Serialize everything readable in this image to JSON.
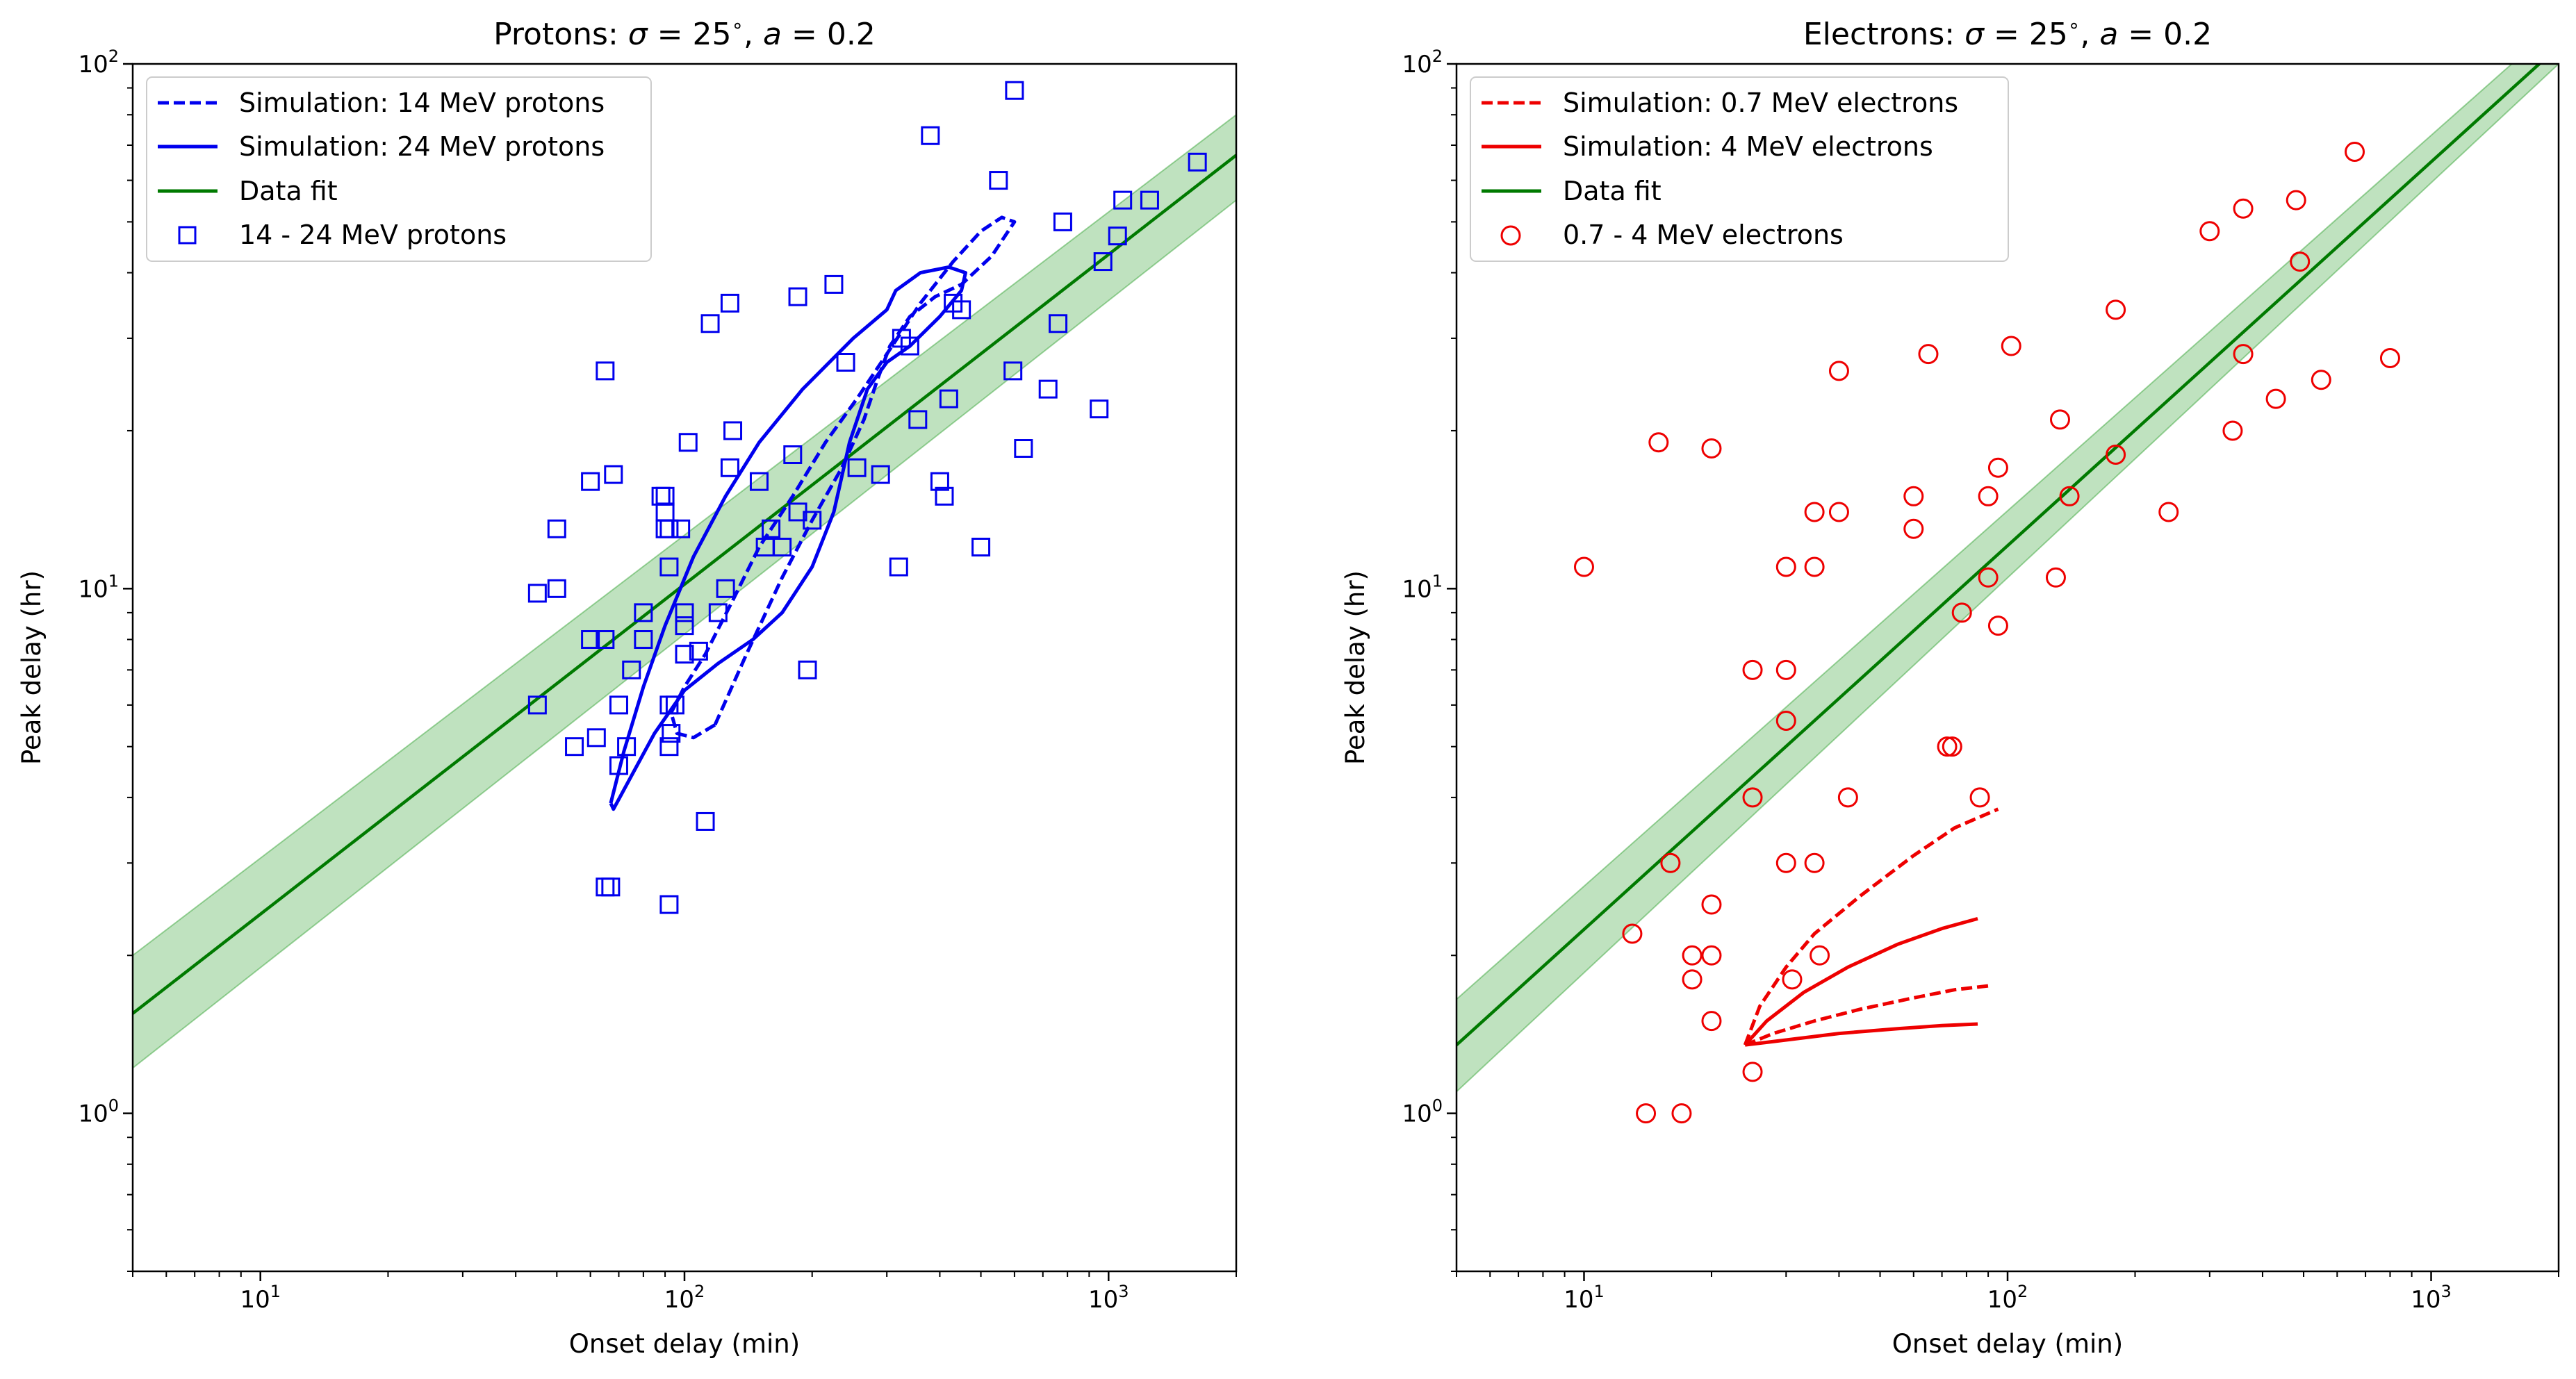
{
  "chart_data": [
    {
      "type": "scatter",
      "title": "Protons: σ = 25°, a = 0.2",
      "title_parts": {
        "prefix": "Protons: ",
        "sigma": "σ",
        "eq1": " = 25",
        "deg": "∘",
        "comma": ", ",
        "a": "a",
        "eq2": " = 0.2"
      },
      "xlabel": "Onset delay (min)",
      "ylabel": "Peak delay (hr)",
      "xscale": "log",
      "yscale": "log",
      "xlim": [
        5,
        2000
      ],
      "ylim": [
        0.5,
        100
      ],
      "xticks": [
        {
          "v": 10,
          "base": "10",
          "exp": "1"
        },
        {
          "v": 100,
          "base": "10",
          "exp": "2"
        },
        {
          "v": 1000,
          "base": "10",
          "exp": "3"
        }
      ],
      "yticks": [
        {
          "v": 1,
          "base": "10",
          "exp": "0"
        },
        {
          "v": 10,
          "base": "10",
          "exp": "1"
        },
        {
          "v": 100,
          "base": "10",
          "exp": "2"
        }
      ],
      "legend_position": "top-left",
      "legend": [
        "Simulation: 14 MeV protons",
        "Simulation: 24 MeV protons",
        "Data fit",
        "14 - 24 MeV protons"
      ],
      "marker": "square",
      "color": "#0000ee",
      "fit": {
        "x": [
          5,
          2000
        ],
        "y": [
          1.55,
          67
        ],
        "band_low": [
          1.22,
          55
        ],
        "band_high": [
          2.0,
          80
        ],
        "color": "#007a00",
        "band_color": "#2ca02c"
      },
      "sim_14": [
        [
          118,
          5.5
        ],
        [
          140,
          7.5
        ],
        [
          170,
          10.5
        ],
        [
          200,
          13.5
        ],
        [
          235,
          17
        ],
        [
          265,
          21
        ],
        [
          285,
          25
        ],
        [
          305,
          29
        ],
        [
          340,
          33
        ],
        [
          390,
          36
        ],
        [
          450,
          38
        ],
        [
          530,
          43
        ],
        [
          580,
          48
        ],
        [
          600,
          50
        ],
        [
          560,
          51
        ],
        [
          500,
          48
        ],
        [
          430,
          42
        ],
        [
          360,
          35
        ],
        [
          300,
          28
        ],
        [
          255,
          23
        ],
        [
          215,
          19
        ],
        [
          180,
          15
        ],
        [
          150,
          12
        ],
        [
          130,
          9.5
        ],
        [
          112,
          7.5
        ],
        [
          100,
          6.5
        ],
        [
          93,
          5.8
        ],
        [
          96,
          5.3
        ],
        [
          105,
          5.2
        ],
        [
          118,
          5.5
        ]
      ],
      "sim_24": [
        [
          67,
          3.9
        ],
        [
          72,
          4.9
        ],
        [
          80,
          6.5
        ],
        [
          90,
          8.5
        ],
        [
          105,
          11.5
        ],
        [
          125,
          15
        ],
        [
          150,
          19
        ],
        [
          190,
          24
        ],
        [
          250,
          30
        ],
        [
          300,
          34
        ],
        [
          315,
          37
        ],
        [
          360,
          40
        ],
        [
          420,
          41
        ],
        [
          460,
          40
        ],
        [
          450,
          37
        ],
        [
          400,
          33
        ],
        [
          340,
          29
        ],
        [
          300,
          27
        ],
        [
          270,
          24
        ],
        [
          245,
          19
        ],
        [
          225,
          14
        ],
        [
          200,
          11
        ],
        [
          170,
          9
        ],
        [
          145,
          8
        ],
        [
          120,
          7.2
        ],
        [
          100,
          6.4
        ],
        [
          85,
          5.3
        ],
        [
          75,
          4.4
        ],
        [
          68,
          3.8
        ],
        [
          67,
          3.9
        ]
      ],
      "points": [
        [
          45,
          6
        ],
        [
          45,
          9.8
        ],
        [
          50,
          13
        ],
        [
          50,
          10
        ],
        [
          55,
          5
        ],
        [
          60,
          16
        ],
        [
          60,
          8
        ],
        [
          62,
          5.2
        ],
        [
          65,
          2.7
        ],
        [
          65,
          26
        ],
        [
          65,
          8
        ],
        [
          68,
          16.5
        ],
        [
          70,
          6
        ],
        [
          70,
          4.6
        ],
        [
          73,
          5
        ],
        [
          75,
          7
        ],
        [
          80,
          9
        ],
        [
          80,
          8
        ],
        [
          88,
          15
        ],
        [
          90,
          15
        ],
        [
          90,
          14
        ],
        [
          90,
          13
        ],
        [
          92,
          11
        ],
        [
          92,
          13
        ],
        [
          92,
          5
        ],
        [
          92,
          6
        ],
        [
          93,
          5.3
        ],
        [
          95,
          6
        ],
        [
          98,
          13
        ],
        [
          100,
          9
        ],
        [
          100,
          7.5
        ],
        [
          100,
          8.5
        ],
        [
          102,
          19
        ],
        [
          108,
          7.6
        ],
        [
          112,
          3.6
        ],
        [
          115,
          32
        ],
        [
          120,
          9
        ],
        [
          125,
          10
        ],
        [
          128,
          17
        ],
        [
          128,
          35
        ],
        [
          130,
          20
        ],
        [
          150,
          16
        ],
        [
          155,
          12
        ],
        [
          160,
          13
        ],
        [
          170,
          12
        ],
        [
          180,
          18
        ],
        [
          185,
          36
        ],
        [
          185,
          14
        ],
        [
          195,
          7
        ],
        [
          200,
          13.5
        ],
        [
          225,
          38
        ],
        [
          240,
          27
        ],
        [
          255,
          17
        ],
        [
          290,
          16.5
        ],
        [
          320,
          11
        ],
        [
          325,
          30
        ],
        [
          340,
          29
        ],
        [
          355,
          21
        ],
        [
          380,
          73
        ],
        [
          400,
          16
        ],
        [
          410,
          15
        ],
        [
          420,
          23
        ],
        [
          430,
          35
        ],
        [
          450,
          34
        ],
        [
          500,
          12
        ],
        [
          550,
          60
        ],
        [
          595,
          26
        ],
        [
          600,
          89
        ],
        [
          630,
          18.5
        ],
        [
          720,
          24
        ],
        [
          760,
          32
        ],
        [
          780,
          50
        ],
        [
          950,
          22
        ],
        [
          970,
          42
        ],
        [
          1050,
          47
        ],
        [
          1080,
          55
        ],
        [
          1250,
          55
        ],
        [
          1620,
          65
        ],
        [
          92,
          2.5
        ],
        [
          67,
          2.7
        ]
      ]
    },
    {
      "type": "scatter",
      "title": "Electrons: σ = 25°, a = 0.2",
      "title_parts": {
        "prefix": "Electrons: ",
        "sigma": "σ",
        "eq1": " = 25",
        "deg": "∘",
        "comma": ", ",
        "a": "a",
        "eq2": " = 0.2"
      },
      "xlabel": "Onset delay (min)",
      "ylabel": "Peak delay (hr)",
      "xscale": "log",
      "yscale": "log",
      "xlim": [
        5,
        2000
      ],
      "ylim": [
        0.5,
        100
      ],
      "xticks": [
        {
          "v": 10,
          "base": "10",
          "exp": "1"
        },
        {
          "v": 100,
          "base": "10",
          "exp": "2"
        },
        {
          "v": 1000,
          "base": "10",
          "exp": "3"
        }
      ],
      "yticks": [
        {
          "v": 1,
          "base": "10",
          "exp": "0"
        },
        {
          "v": 10,
          "base": "10",
          "exp": "1"
        },
        {
          "v": 100,
          "base": "10",
          "exp": "2"
        }
      ],
      "legend_position": "top-left",
      "legend": [
        "Simulation: 0.7 MeV electrons",
        "Simulation: 4 MeV electrons",
        "Data fit",
        "0.7 - 4 MeV electrons"
      ],
      "marker": "circle",
      "color": "#ee0000",
      "fit": {
        "x": [
          5,
          2000
        ],
        "y": [
          1.35,
          108
        ],
        "band_low": [
          1.1,
          100
        ],
        "band_high": [
          1.65,
          120
        ],
        "color": "#007a00",
        "band_color": "#2ca02c"
      },
      "sim_07_upper": [
        [
          24,
          1.35
        ],
        [
          26,
          1.6
        ],
        [
          30,
          1.9
        ],
        [
          35,
          2.2
        ],
        [
          45,
          2.6
        ],
        [
          60,
          3.1
        ],
        [
          75,
          3.5
        ],
        [
          95,
          3.8
        ]
      ],
      "sim_07_lower": [
        [
          24,
          1.35
        ],
        [
          28,
          1.42
        ],
        [
          35,
          1.5
        ],
        [
          45,
          1.58
        ],
        [
          60,
          1.66
        ],
        [
          75,
          1.72
        ],
        [
          90,
          1.75
        ]
      ],
      "sim_4_upper": [
        [
          24,
          1.35
        ],
        [
          27,
          1.5
        ],
        [
          33,
          1.7
        ],
        [
          42,
          1.9
        ],
        [
          55,
          2.1
        ],
        [
          70,
          2.25
        ],
        [
          85,
          2.35
        ]
      ],
      "sim_4_lower": [
        [
          24,
          1.35
        ],
        [
          30,
          1.38
        ],
        [
          40,
          1.42
        ],
        [
          55,
          1.45
        ],
        [
          70,
          1.47
        ],
        [
          85,
          1.48
        ]
      ],
      "points": [
        [
          10,
          11
        ],
        [
          13,
          2.2
        ],
        [
          14,
          1
        ],
        [
          15,
          19
        ],
        [
          16,
          3
        ],
        [
          17,
          1
        ],
        [
          18,
          2
        ],
        [
          18,
          1.8
        ],
        [
          20,
          18.5
        ],
        [
          20,
          2.5
        ],
        [
          20,
          2
        ],
        [
          20,
          1.5
        ],
        [
          25,
          7
        ],
        [
          25,
          4
        ],
        [
          25,
          1.2
        ],
        [
          30,
          11
        ],
        [
          30,
          7
        ],
        [
          30,
          5.6
        ],
        [
          30,
          3
        ],
        [
          31,
          1.8
        ],
        [
          35,
          14
        ],
        [
          35,
          11
        ],
        [
          35,
          3
        ],
        [
          36,
          2
        ],
        [
          40,
          26
        ],
        [
          40,
          14
        ],
        [
          42,
          4
        ],
        [
          60,
          15
        ],
        [
          60,
          13
        ],
        [
          65,
          28
        ],
        [
          72,
          5
        ],
        [
          74,
          5
        ],
        [
          78,
          9
        ],
        [
          86,
          4
        ],
        [
          90,
          15
        ],
        [
          90,
          10.5
        ],
        [
          95,
          17
        ],
        [
          95,
          8.5
        ],
        [
          102,
          29
        ],
        [
          130,
          10.5
        ],
        [
          133,
          21
        ],
        [
          140,
          15
        ],
        [
          180,
          34
        ],
        [
          180,
          18
        ],
        [
          240,
          14
        ],
        [
          300,
          48
        ],
        [
          340,
          20
        ],
        [
          360,
          53
        ],
        [
          360,
          28
        ],
        [
          430,
          23
        ],
        [
          480,
          55
        ],
        [
          490,
          42
        ],
        [
          550,
          25
        ],
        [
          660,
          68
        ],
        [
          800,
          27.5
        ]
      ]
    }
  ]
}
